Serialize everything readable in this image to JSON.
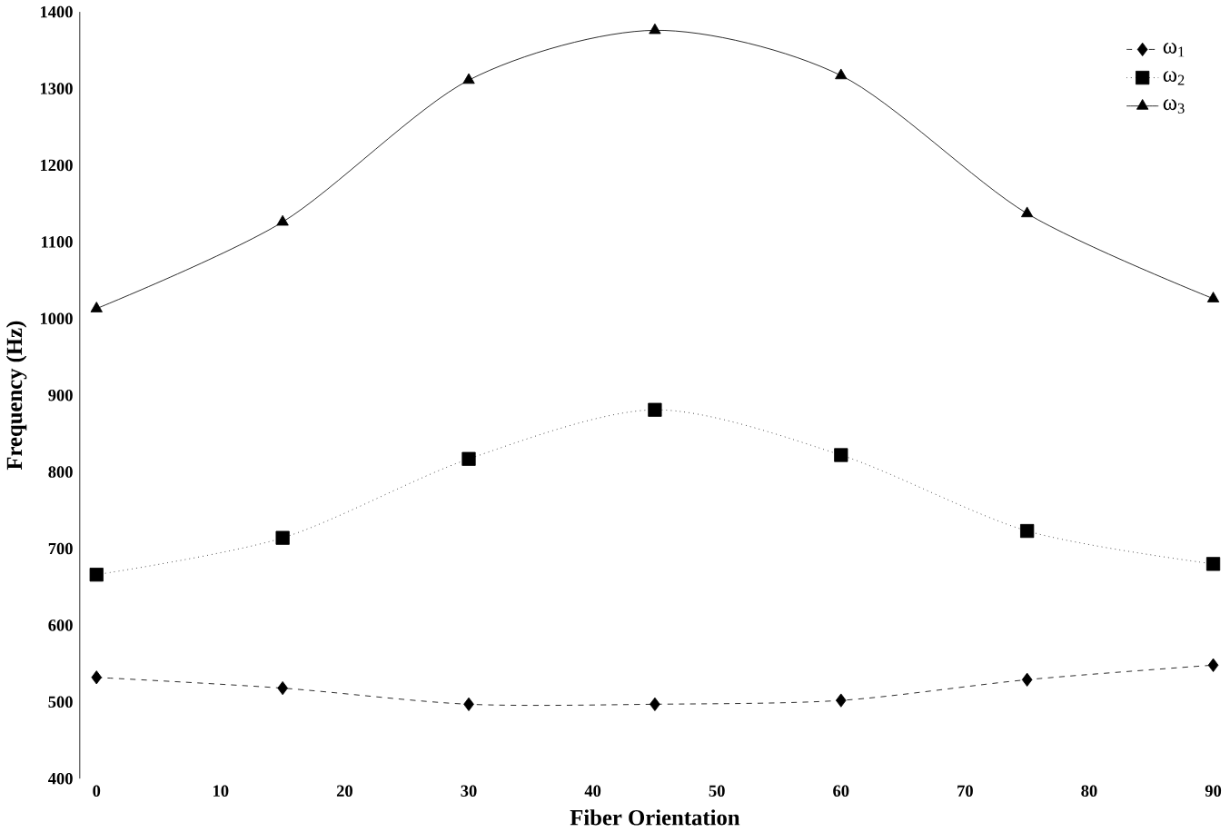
{
  "chart_data": {
    "type": "line",
    "xlabel": "Fiber Orientation",
    "ylabel": "Frequency (Hz)",
    "x": [
      0,
      15,
      30,
      45,
      60,
      75,
      90
    ],
    "series": [
      {
        "name": "ω$_{1}$",
        "color": "#000000",
        "marker": "diamond",
        "line_style": "dashed",
        "values": [
          532,
          518,
          497,
          497,
          502,
          529,
          548
        ]
      },
      {
        "name": "ω$_{2}$",
        "color": "#000000",
        "marker": "square",
        "line_style": "dotted",
        "values": [
          666,
          714,
          817,
          881,
          822,
          723,
          680
        ]
      },
      {
        "name": "ω$_{3}$",
        "color": "#000000",
        "marker": "triangle",
        "line_style": "solid",
        "values": [
          1013,
          1126,
          1311,
          1376,
          1317,
          1137,
          1026
        ]
      }
    ],
    "xlim": [
      0,
      90
    ],
    "xticks": [
      0,
      10,
      20,
      30,
      40,
      50,
      60,
      70,
      80,
      90
    ],
    "ylim": [
      400,
      1400
    ],
    "yticks": [
      400,
      500,
      600,
      700,
      800,
      900,
      1000,
      1100,
      1200,
      1300,
      1400
    ],
    "grid": false,
    "legend": "top right"
  }
}
